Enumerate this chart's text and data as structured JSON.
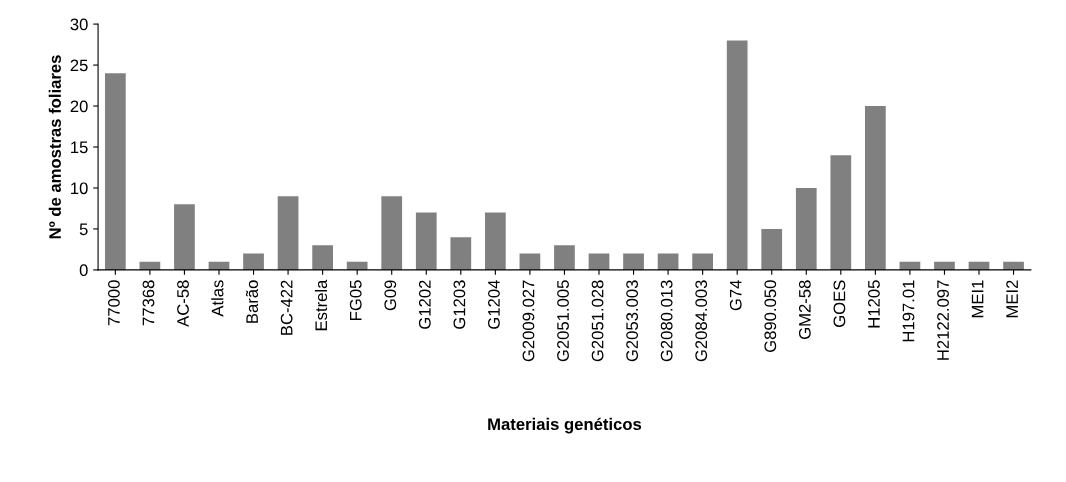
{
  "chart_data": {
    "type": "bar",
    "xlabel": "Materiais genéticos",
    "ylabel": "Nº de amostras foliares",
    "categories": [
      "77000",
      "77368",
      "AC-58",
      "Atlas",
      "Barão",
      "BC-422",
      "Estrela",
      "FG05",
      "G09",
      "G1202",
      "G1203",
      "G1204",
      "G2009.027",
      "G2051.005",
      "G2051.028",
      "G2053.003",
      "G2080.013",
      "G2084.003",
      "G74",
      "G890.050",
      "GM2-58",
      "GOES",
      "H1205",
      "H197.01",
      "H2122.097",
      "MEI1",
      "MEI2"
    ],
    "values": [
      24,
      1,
      8,
      1,
      2,
      9,
      3,
      1,
      9,
      7,
      4,
      7,
      2,
      3,
      2,
      2,
      2,
      2,
      28,
      5,
      10,
      14,
      20,
      1,
      1,
      1,
      1
    ],
    "color": "#808080",
    "ylim": [
      0,
      30
    ],
    "yticks": [
      0,
      5,
      10,
      15,
      20,
      25,
      30
    ],
    "grid": false,
    "legend": false
  }
}
